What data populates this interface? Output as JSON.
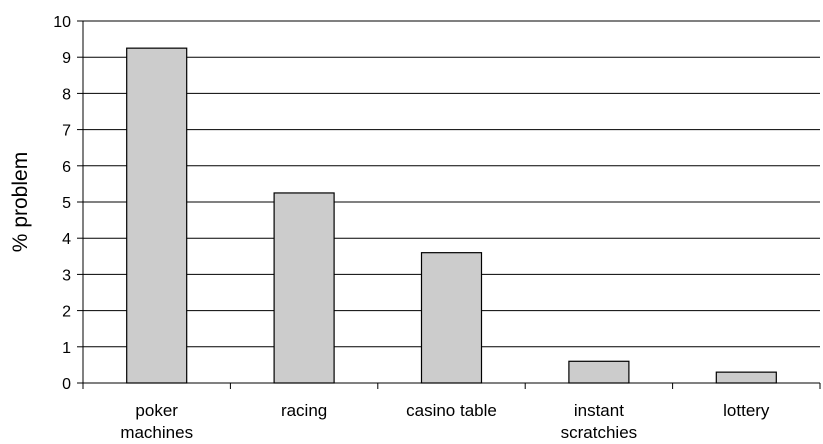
{
  "chart_data": {
    "type": "bar",
    "categories": [
      [
        "poker",
        "machines"
      ],
      [
        "racing"
      ],
      [
        "casino table"
      ],
      [
        "instant",
        "scratchies"
      ],
      [
        "lottery"
      ]
    ],
    "values": [
      9.25,
      5.25,
      3.6,
      0.6,
      0.3
    ],
    "title": "",
    "xlabel": "",
    "ylabel": "% problem",
    "ylim": [
      0,
      10
    ],
    "yticks": [
      "0",
      "1",
      "2",
      "3",
      "4",
      "5",
      "6",
      "7",
      "8",
      "9",
      "10"
    ],
    "grid": true,
    "legend": "none",
    "colors": {
      "bar_fill": "#cccccc",
      "bar_stroke": "#000000",
      "grid": "#000000",
      "axis": "#000000"
    }
  }
}
